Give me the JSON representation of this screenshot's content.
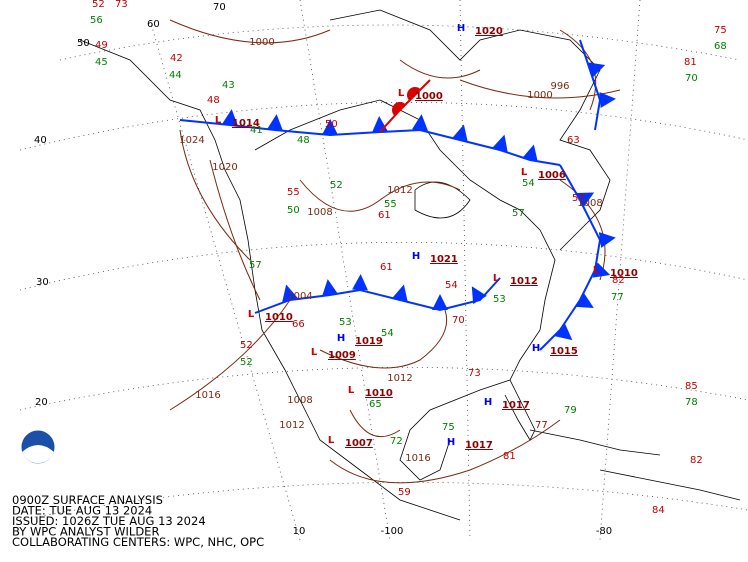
{
  "caption": [
    "0900Z SURFACE ANALYSIS",
    "DATE: TUE AUG 13 2024",
    "ISSUED: 1026Z TUE AUG 13 2024",
    "BY WPC ANALYST WILDER",
    "COLLABORATING CENTERS: WPC, NHC, OPC"
  ],
  "latitude_labels": [
    "70",
    "60",
    "50",
    "40",
    "30",
    "20"
  ],
  "longitude_labels": [
    "10",
    "-100",
    "-80"
  ],
  "pressure_centers": [
    {
      "type": "H",
      "pressure": "1020"
    },
    {
      "type": "L",
      "pressure": "1014"
    },
    {
      "type": "H",
      "pressure": "1021"
    },
    {
      "type": "L",
      "pressure": "1006"
    },
    {
      "type": "L",
      "pressure": "1010"
    },
    {
      "type": "H",
      "pressure": "1015"
    },
    {
      "type": "H",
      "pressure": "1017"
    },
    {
      "type": "L",
      "pressure": "1010"
    },
    {
      "type": "H",
      "pressure": "1017"
    },
    {
      "type": "L",
      "pressure": "1007"
    },
    {
      "type": "H",
      "pressure": "1019"
    },
    {
      "type": "L",
      "pressure": "1009"
    },
    {
      "type": "L",
      "pressure": "1010"
    },
    {
      "type": "L",
      "pressure": "1012"
    },
    {
      "type": "L",
      "pressure": "1000"
    }
  ],
  "isobar_labels": [
    "1000",
    "1000",
    "1024",
    "1020",
    "1008",
    "1012",
    "1008",
    "1016",
    "1012",
    "1008",
    "1016",
    "1012",
    "996",
    "1004"
  ],
  "temperatures": [
    "52",
    "73",
    "49",
    "42",
    "48",
    "50",
    "55",
    "61",
    "61",
    "66",
    "52",
    "59",
    "81",
    "77",
    "82",
    "85",
    "82",
    "84",
    "75",
    "81",
    "63",
    "57",
    "54",
    "70",
    "73"
  ],
  "dew_points": [
    "56",
    "45",
    "44",
    "43",
    "41",
    "48",
    "52",
    "55",
    "50",
    "57",
    "53",
    "54",
    "65",
    "72",
    "75",
    "77",
    "79",
    "78",
    "70",
    "68",
    "54",
    "57",
    "53",
    "52"
  ],
  "colors": {
    "high": "#0000ff",
    "low": "#cc0000",
    "pressure": "#8b0000",
    "isobar": "#7a2a10",
    "temperature": "#c00000",
    "dew_point": "#008000"
  }
}
